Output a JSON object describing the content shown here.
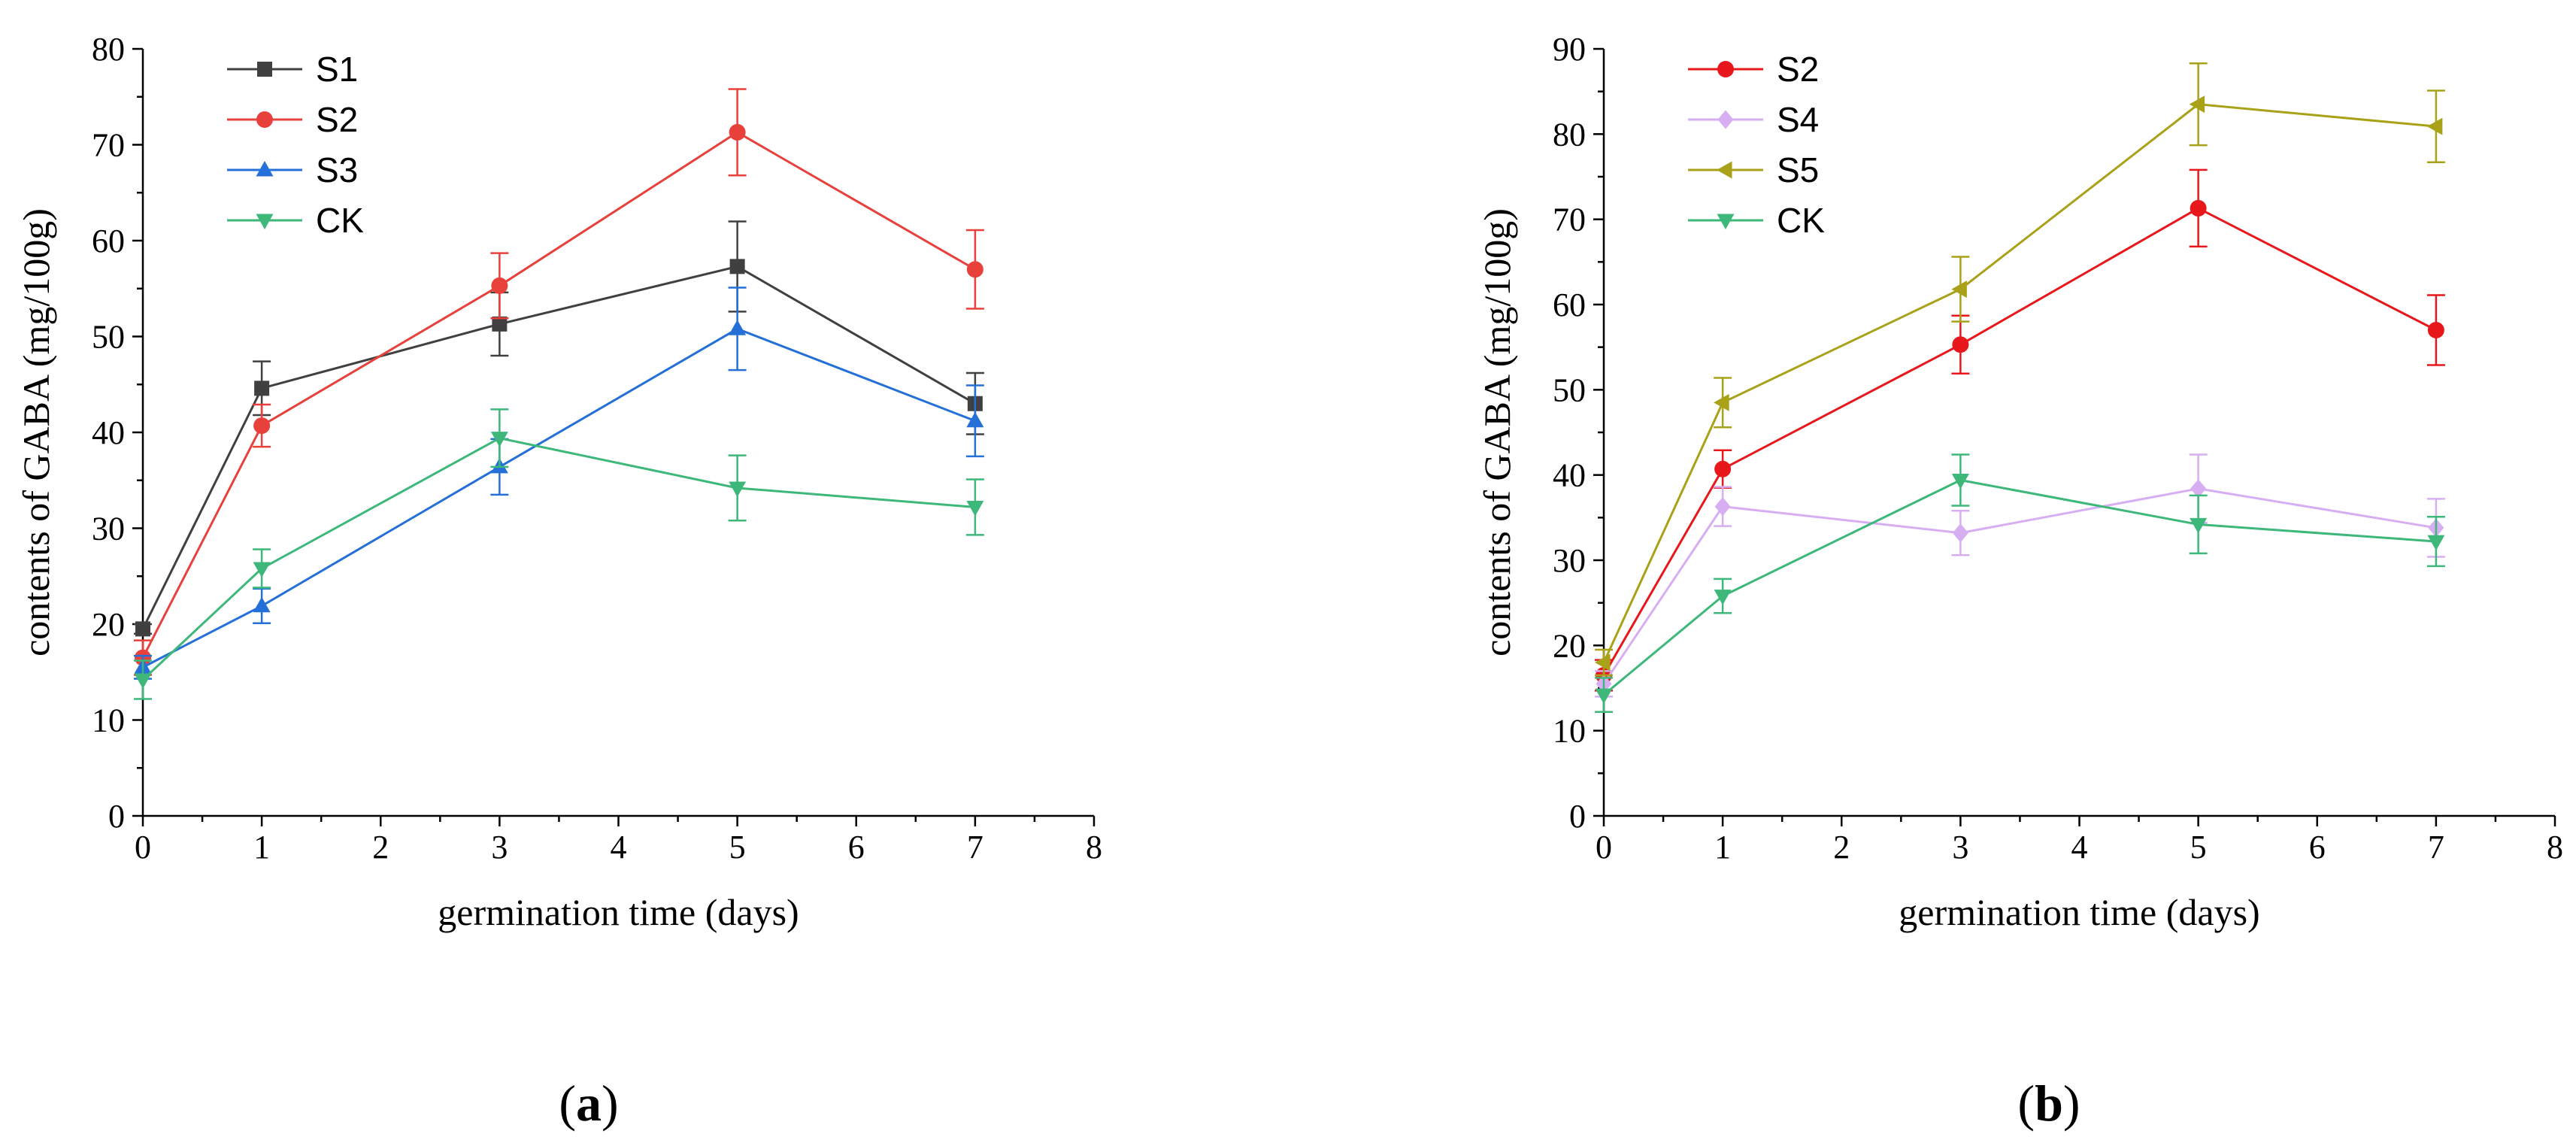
{
  "chart_data": [
    {
      "type": "line",
      "panel_label": "(a)",
      "panel_letter": "a",
      "title": "",
      "xlabel": "germination time (days)",
      "ylabel": "contents of GABA (mg/100g)",
      "xlim": [
        0,
        8
      ],
      "ylim": [
        0,
        80
      ],
      "xticks": [
        0,
        1,
        2,
        3,
        4,
        5,
        6,
        7,
        8
      ],
      "yticks": [
        0,
        10,
        20,
        30,
        40,
        50,
        60,
        70,
        80
      ],
      "legend_position": "top-left",
      "x": [
        0,
        1,
        3,
        5,
        7
      ],
      "series": [
        {
          "name": "S1",
          "color": "#404040",
          "marker": "square",
          "values": [
            19.5,
            44.6,
            51.3,
            57.3,
            43.0
          ],
          "errors": [
            0.5,
            2.8,
            3.3,
            4.7,
            3.2
          ]
        },
        {
          "name": "S2",
          "color": "#e8413c",
          "marker": "circle",
          "values": [
            16.5,
            40.7,
            55.3,
            71.3,
            57.0
          ],
          "errors": [
            1.8,
            2.2,
            3.4,
            4.5,
            4.1
          ]
        },
        {
          "name": "S3",
          "color": "#2470d8",
          "marker": "triangle",
          "values": [
            15.5,
            21.9,
            36.4,
            50.8,
            41.2
          ],
          "errors": [
            1.2,
            1.8,
            2.9,
            4.3,
            3.7
          ]
        },
        {
          "name": "CK",
          "color": "#3db87a",
          "marker": "triangle-down",
          "values": [
            14.2,
            25.8,
            39.4,
            34.2,
            32.2
          ],
          "errors": [
            2.0,
            2.0,
            3.0,
            3.4,
            2.9
          ]
        }
      ]
    },
    {
      "type": "line",
      "panel_label": "(b)",
      "panel_letter": "b",
      "title": "",
      "xlabel": "germination time (days)",
      "ylabel": "contents of GABA (mg/100g)",
      "xlim": [
        0,
        8
      ],
      "ylim": [
        0,
        90
      ],
      "xticks": [
        0,
        1,
        2,
        3,
        4,
        5,
        6,
        7,
        8
      ],
      "yticks": [
        0,
        10,
        20,
        30,
        40,
        50,
        60,
        70,
        80,
        90
      ],
      "legend_position": "top-left",
      "x": [
        0,
        1,
        3,
        5,
        7
      ],
      "series": [
        {
          "name": "S2",
          "color": "#e8171b",
          "marker": "circle",
          "values": [
            16.5,
            40.7,
            55.3,
            71.3,
            57.0
          ],
          "errors": [
            1.8,
            2.2,
            3.4,
            4.5,
            4.1
          ]
        },
        {
          "name": "S4",
          "color": "#d7aef2",
          "marker": "diamond",
          "values": [
            15.5,
            36.3,
            33.2,
            38.4,
            33.8
          ],
          "errors": [
            1.5,
            2.3,
            2.6,
            4.0,
            3.4
          ]
        },
        {
          "name": "S5",
          "color": "#a9a219",
          "marker": "triangle-left",
          "values": [
            18.0,
            48.5,
            61.8,
            83.5,
            80.9
          ],
          "errors": [
            1.5,
            2.9,
            3.8,
            4.8,
            4.2
          ]
        },
        {
          "name": "CK",
          "color": "#3db87a",
          "marker": "triangle-down",
          "values": [
            14.2,
            25.8,
            39.4,
            34.2,
            32.2
          ],
          "errors": [
            2.0,
            2.0,
            3.0,
            3.4,
            2.9
          ]
        }
      ]
    }
  ]
}
